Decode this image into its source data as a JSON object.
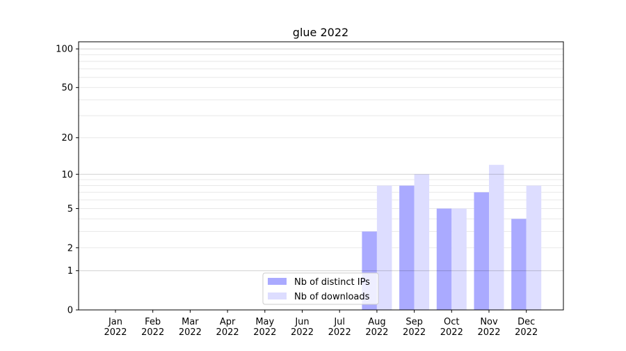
{
  "chart_data": {
    "type": "bar",
    "title": "glue 2022",
    "xlabel": "",
    "ylabel": "",
    "yscale": "log(1+y)",
    "ylim": [
      0,
      113
    ],
    "yticks": [
      0,
      1,
      2,
      5,
      10,
      20,
      50,
      100
    ],
    "grid": true,
    "legend_position": "lower-center",
    "categories": [
      "Jan\n2022",
      "Feb\n2022",
      "Mar\n2022",
      "Apr\n2022",
      "May\n2022",
      "Jun\n2022",
      "Jul\n2022",
      "Aug\n2022",
      "Sep\n2022",
      "Oct\n2022",
      "Nov\n2022",
      "Dec\n2022"
    ],
    "series": [
      {
        "name": "Nb of distinct IPs",
        "color": "#aaaaff",
        "values": [
          0,
          0,
          0,
          0,
          0,
          0,
          0,
          3,
          8,
          5,
          7,
          4
        ]
      },
      {
        "name": "Nb of downloads",
        "color": "#ddddff",
        "values": [
          0,
          0,
          0,
          0,
          0,
          0,
          0,
          8,
          10,
          5,
          12,
          8
        ]
      }
    ]
  }
}
